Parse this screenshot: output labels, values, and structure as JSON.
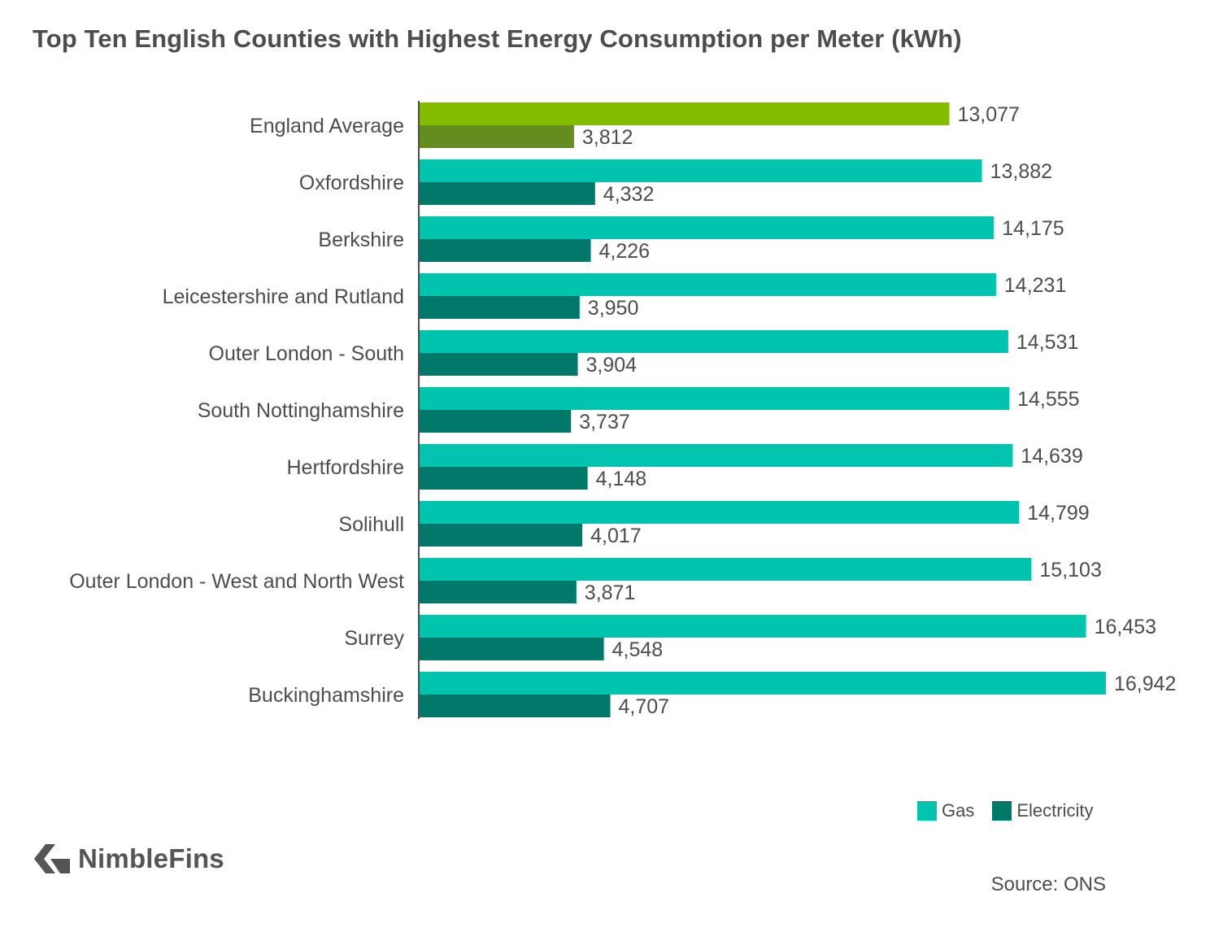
{
  "title": "Top Ten English Counties with Highest Energy Consumption per Meter (kWh)",
  "colors": {
    "gas": "#00c4ad",
    "electricity": "#00796b",
    "average_gas": "#84bd00",
    "average_electricity": "#648c1e",
    "label": "#4d4d4d",
    "axis": "#4d4d4d"
  },
  "legend": {
    "gas_label": "Gas",
    "electricity_label": "Electricity"
  },
  "brand": {
    "name": "NimbleFins",
    "logo_icon": "nimblefins-chevron-logo"
  },
  "source": "Source: ONS",
  "chart_data": {
    "type": "bar",
    "orientation": "horizontal",
    "title": "Top Ten English Counties with Highest Energy Consumption per Meter (kWh)",
    "xlabel": "",
    "ylabel": "",
    "xlim": [
      0,
      17000
    ],
    "grid": false,
    "legend_position": "bottom-right",
    "categories": [
      "England Average",
      "Oxfordshire",
      "Berkshire",
      "Leicestershire and Rutland",
      "Outer London - South",
      "South Nottinghamshire",
      "Hertfordshire",
      "Solihull",
      "Outer London - West and North West",
      "Surrey",
      "Buckinghamshire"
    ],
    "series": [
      {
        "name": "Gas",
        "values": [
          13077,
          13882,
          14175,
          14231,
          14531,
          14555,
          14639,
          14799,
          15103,
          16453,
          16942
        ],
        "labels": [
          "13,077",
          "13,882",
          "14,175",
          "14,231",
          "14,531",
          "14,555",
          "14,639",
          "14,799",
          "15,103",
          "16,453",
          "16,942"
        ]
      },
      {
        "name": "Electricity",
        "values": [
          3812,
          4332,
          4226,
          3950,
          3904,
          3737,
          4148,
          4017,
          3871,
          4548,
          4707
        ],
        "labels": [
          "3,812",
          "4,332",
          "4,226",
          "3,950",
          "3,904",
          "3,737",
          "4,148",
          "4,017",
          "3,871",
          "4,548",
          "4,707"
        ]
      }
    ],
    "highlight_category_index": 0
  }
}
